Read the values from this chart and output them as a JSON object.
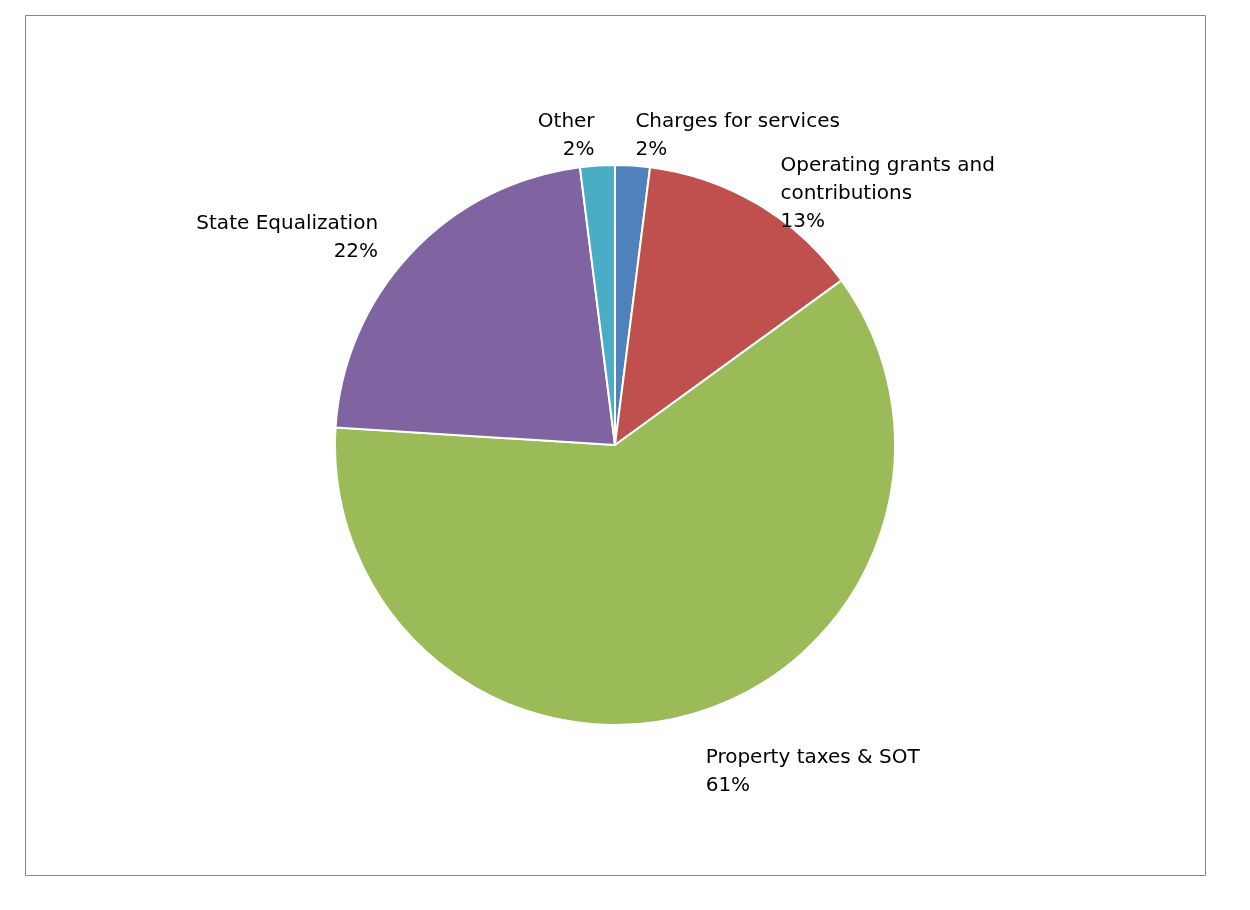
{
  "chart_data": {
    "type": "pie",
    "categories": [
      "Charges for services",
      "Operating grants and contributions",
      "Property taxes & SOT",
      "State Equalization",
      "Other"
    ],
    "values": [
      2,
      13,
      61,
      22,
      2
    ],
    "value_labels": [
      "2%",
      "13%",
      "61%",
      "22%",
      "2%"
    ],
    "colors": [
      "#4f81bd",
      "#c0504d",
      "#9bbb59",
      "#8064a2",
      "#4bacc6"
    ]
  }
}
